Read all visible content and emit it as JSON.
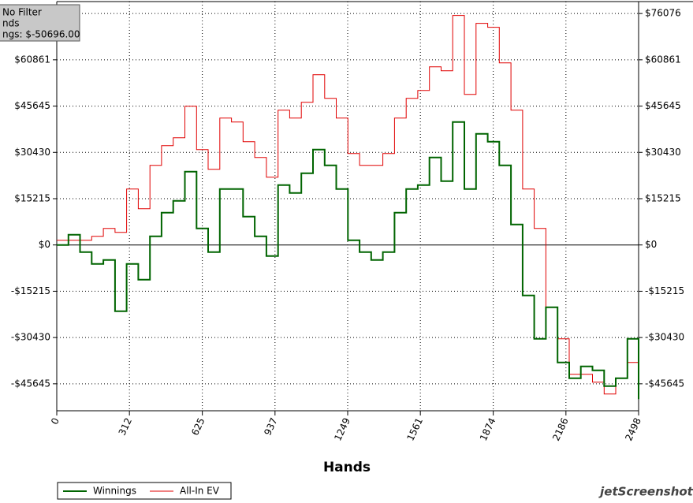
{
  "chart_data": {
    "type": "line",
    "info_box": [
      "No Filter",
      "nds",
      "ngs: $-50696.00"
    ],
    "x_label": "Hands",
    "watermark": "jetScreenshot",
    "x": [
      0,
      50,
      100,
      150,
      200,
      250,
      300,
      350,
      400,
      450,
      500,
      550,
      600,
      650,
      700,
      750,
      800,
      850,
      900,
      950,
      1000,
      1050,
      1100,
      1150,
      1200,
      1250,
      1300,
      1350,
      1400,
      1450,
      1500,
      1550,
      1600,
      1650,
      1700,
      1750,
      1800,
      1850,
      1900,
      1950,
      2000,
      2050,
      2100,
      2150,
      2200,
      2250,
      2300,
      2350,
      2400,
      2450,
      2498
    ],
    "series": [
      {
        "name": "Winnings",
        "color": "#006400",
        "values": [
          0,
          3370,
          -2333,
          -6221,
          -4925,
          -21773,
          -6221,
          -11405,
          2851,
          10627,
          14515,
          24106,
          5443,
          -2333,
          18403,
          18403,
          9331,
          2851,
          -3629,
          19699,
          17107,
          23587,
          31363,
          26179,
          18403,
          1555,
          -2333,
          -4925,
          -2333,
          10627,
          18403,
          19699,
          28771,
          20995,
          40435,
          18403,
          36547,
          33955,
          26179,
          6739,
          -16589,
          -30845,
          -20477,
          -38621,
          -43805,
          -39917,
          -41213,
          -46397,
          -43805,
          -30845,
          -50696
        ]
      },
      {
        "name": "All-In EV",
        "color": "#e00000",
        "values": [
          1555,
          1555,
          1555,
          2851,
          5443,
          4147,
          18403,
          11923,
          26179,
          32659,
          35251,
          45619,
          31363,
          24883,
          41731,
          40435,
          33955,
          28771,
          22291,
          44323,
          41731,
          46915,
          55987,
          48211,
          41731,
          30067,
          26179,
          26179,
          30067,
          41731,
          48211,
          50803,
          58579,
          57283,
          75427,
          49507,
          72835,
          71539,
          59875,
          44323,
          18403,
          5443,
          -20477,
          -30845,
          -42509,
          -42509,
          -45101,
          -48989,
          -43805,
          -38621,
          -48989
        ]
      }
    ],
    "xlim": [
      0,
      2498
    ],
    "xticks": [
      0,
      312,
      625,
      937,
      1249,
      1561,
      1874,
      2186,
      2498
    ],
    "ylim": [
      -54500,
      80000
    ],
    "yticks": [
      {
        "value": -45645,
        "label": "-$45645"
      },
      {
        "value": -30430,
        "label": "-$30430"
      },
      {
        "value": -15215,
        "label": "-$15215"
      },
      {
        "value": 0,
        "label": "$0"
      },
      {
        "value": 15215,
        "label": "$15215"
      },
      {
        "value": 30430,
        "label": "$30430"
      },
      {
        "value": 45645,
        "label": "$45645"
      },
      {
        "value": 60861,
        "label": "$60861"
      },
      {
        "value": 76076,
        "label": "$76076"
      }
    ],
    "grid": true
  }
}
